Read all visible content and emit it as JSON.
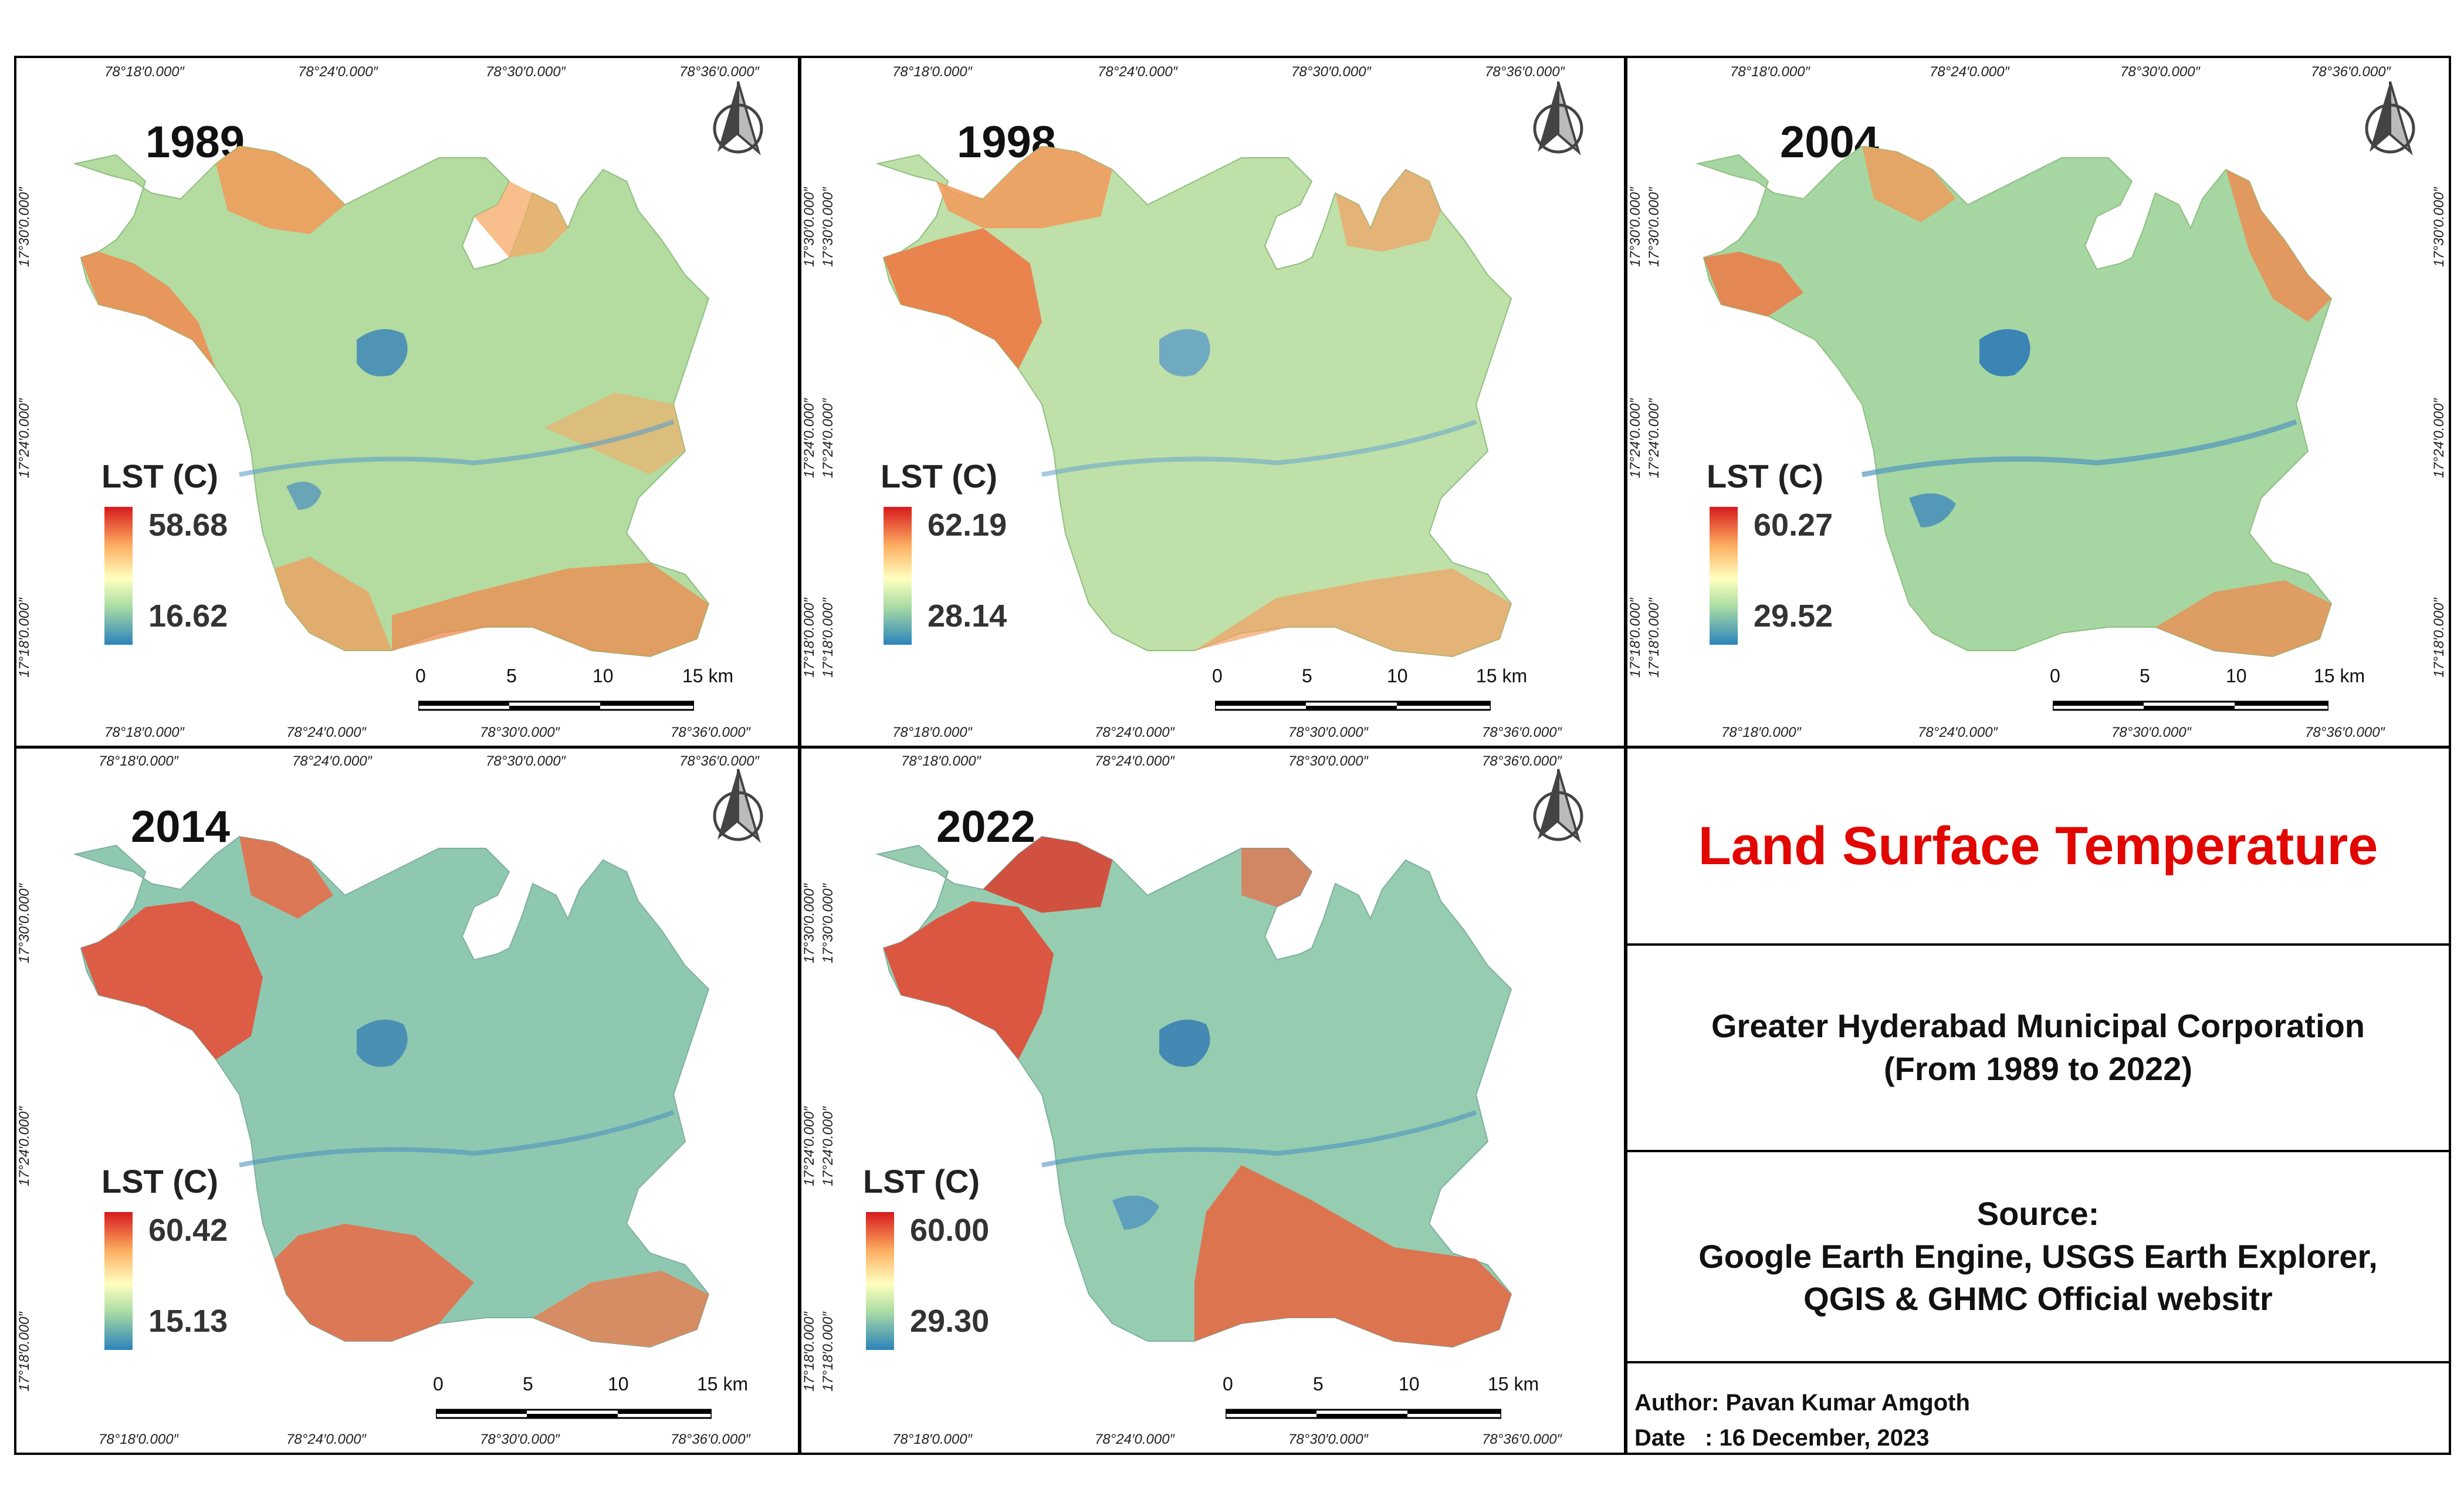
{
  "coords": {
    "lon": [
      "78°18′0.000″",
      "78°24′0.000″",
      "78°30′0.000″",
      "78°36′0.000″"
    ],
    "lat": [
      "17°18′0.000″",
      "17°24′0.000″",
      "17°30′0.000″"
    ]
  },
  "panels": [
    {
      "year": "1989",
      "legend_title": "LST (C)",
      "max": "58.68",
      "min": "16.62"
    },
    {
      "year": "1998",
      "legend_title": "LST (C)",
      "max": "62.19",
      "min": "28.14"
    },
    {
      "year": "2004",
      "legend_title": "LST (C)",
      "max": "60.27",
      "min": "29.52"
    },
    {
      "year": "2014",
      "legend_title": "LST (C)",
      "max": "60.42",
      "min": "15.13"
    },
    {
      "year": "2022",
      "legend_title": "LST (C)",
      "max": "60.00",
      "min": "29.30"
    }
  ],
  "scale_labels": [
    "0",
    "5",
    "10",
    "15 km"
  ],
  "title": "Land Surface Temperature",
  "subtitle_line1": "Greater Hyderabad Municipal Corporation",
  "subtitle_line2": "(From 1989 to 2022)",
  "source_heading": "Source:",
  "source_line1": "Google Earth Engine, USGS Earth Explorer,",
  "source_line2": "QGIS & GHMC Official websitr",
  "author": "Author: Pavan Kumar Amgoth",
  "date": "Date   : 16 December, 2023",
  "colors": {
    "title": "#e10600",
    "ramp": [
      "#d7191c",
      "#fdae61",
      "#ffffbf",
      "#abdda4",
      "#2b83ba"
    ]
  }
}
